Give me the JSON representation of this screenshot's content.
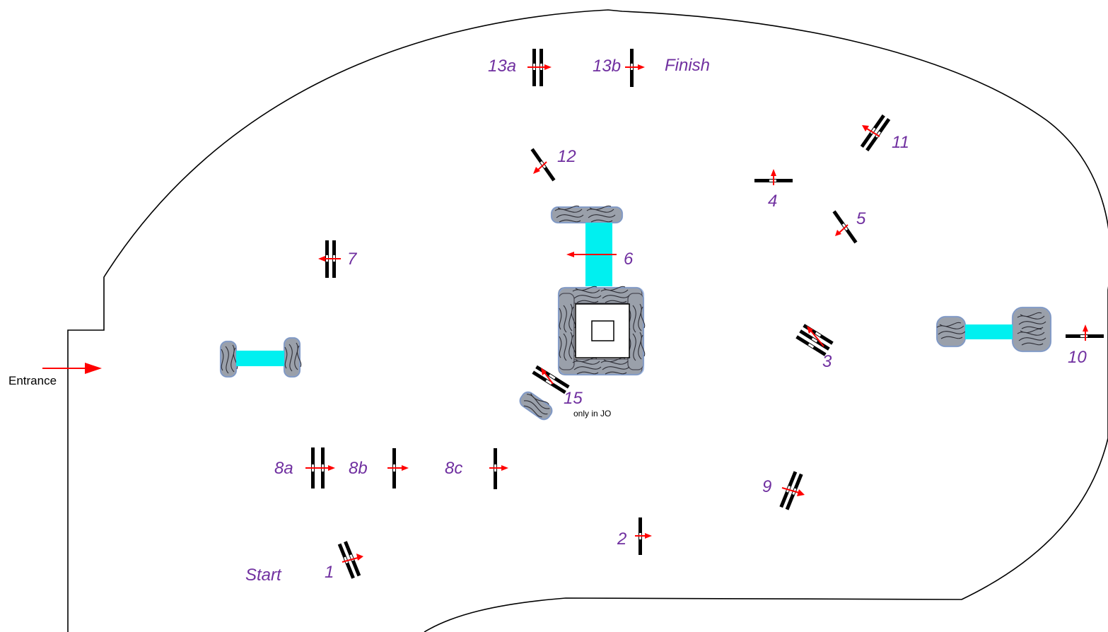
{
  "course": {
    "entrance_label": "Entrance",
    "start_label": "Start",
    "finish_label": "Finish",
    "note_only_in_jo": "only in JO",
    "arrow_color": "#ff0000",
    "label_color": "#7030a0",
    "water_color": "#00f0f0"
  },
  "fences": [
    {
      "label": "1"
    },
    {
      "label": "2"
    },
    {
      "label": "3"
    },
    {
      "label": "4"
    },
    {
      "label": "5"
    },
    {
      "label": "6"
    },
    {
      "label": "7"
    },
    {
      "label": "8a"
    },
    {
      "label": "8b"
    },
    {
      "label": "8c"
    },
    {
      "label": "9"
    },
    {
      "label": "10"
    },
    {
      "label": "11"
    },
    {
      "label": "12"
    },
    {
      "label": "13a"
    },
    {
      "label": "13b"
    },
    {
      "label": "15"
    }
  ]
}
